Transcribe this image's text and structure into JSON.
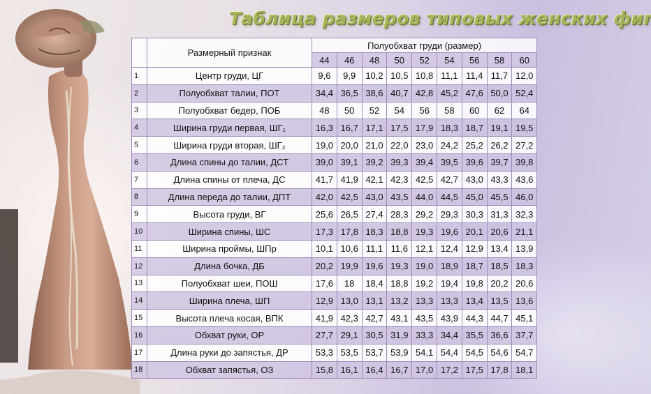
{
  "title": "Таблица размеров типовых женских фигур",
  "table": {
    "feature_header": "Размерный признак",
    "group_header": "Полуобхват груди (размер)",
    "sizes": [
      "44",
      "46",
      "48",
      "50",
      "52",
      "54",
      "56",
      "58",
      "60"
    ],
    "rows": [
      {
        "num": "1",
        "name": "Центр груди, ЦГ",
        "values": [
          "9,6",
          "9,9",
          "10,2",
          "10,5",
          "10,8",
          "11,1",
          "11,4",
          "11,7",
          "12,0"
        ]
      },
      {
        "num": "2",
        "name": "Полуобхват талии, ПОТ",
        "values": [
          "34,4",
          "36,5",
          "38,6",
          "40,7",
          "42,8",
          "45,2",
          "47,6",
          "50,0",
          "52,4"
        ]
      },
      {
        "num": "3",
        "name": "Полуобхват бедер, ПОБ",
        "values": [
          "48",
          "50",
          "52",
          "54",
          "56",
          "58",
          "60",
          "62",
          "64"
        ]
      },
      {
        "num": "4",
        "name": "Ширина груди первая, ШГ₁",
        "values": [
          "16,3",
          "16,7",
          "17,1",
          "17,5",
          "17,9",
          "18,3",
          "18,7",
          "19,1",
          "19,5"
        ]
      },
      {
        "num": "5",
        "name": "Ширина груди вторая, ШГ₂",
        "values": [
          "19,0",
          "20,0",
          "21,0",
          "22,0",
          "23,0",
          "24,2",
          "25,2",
          "26,2",
          "27,2"
        ]
      },
      {
        "num": "6",
        "name": "Длина спины до талии, ДСТ",
        "values": [
          "39,0",
          "39,1",
          "39,2",
          "39,3",
          "39,4",
          "39,5",
          "39,6",
          "39,7",
          "39,8"
        ]
      },
      {
        "num": "7",
        "name": "Длина спины от плеча, ДС",
        "values": [
          "41,7",
          "41,9",
          "42,1",
          "42,3",
          "42,5",
          "42,7",
          "43,0",
          "43,3",
          "43,6"
        ]
      },
      {
        "num": "8",
        "name": "Длина переда до талии, ДПТ",
        "values": [
          "42,0",
          "42,5",
          "43,0",
          "43,5",
          "44,0",
          "44,5",
          "45,0",
          "45,5",
          "46,0"
        ]
      },
      {
        "num": "9",
        "name": "Высота груди, ВГ",
        "values": [
          "25,6",
          "26,5",
          "27,4",
          "28,3",
          "29,2",
          "29,3",
          "30,3",
          "31,3",
          "32,3"
        ]
      },
      {
        "num": "10",
        "name": "Ширина спины, ШС",
        "values": [
          "17,3",
          "17,8",
          "18,3",
          "18,8",
          "19,3",
          "19,6",
          "20,1",
          "20,6",
          "21,1"
        ]
      },
      {
        "num": "11",
        "name": "Ширина проймы, ШПр",
        "values": [
          "10,1",
          "10,6",
          "11,1",
          "11,6",
          "12,1",
          "12,4",
          "12,9",
          "13,4",
          "13,9"
        ]
      },
      {
        "num": "12",
        "name": "Длина бочка, ДБ",
        "values": [
          "20,2",
          "19,9",
          "19,6",
          "19,3",
          "19,0",
          "18,9",
          "18,7",
          "18,5",
          "18,3"
        ]
      },
      {
        "num": "13",
        "name": "Полуобхват шеи, ПОШ",
        "values": [
          "17,6",
          "18",
          "18,4",
          "18,8",
          "19,2",
          "19,4",
          "19,8",
          "20,2",
          "20,6"
        ]
      },
      {
        "num": "14",
        "name": "Ширина плеча, ШП",
        "values": [
          "12,9",
          "13,0",
          "13,1",
          "13,2",
          "13,3",
          "13,3",
          "13,4",
          "13,5",
          "13,6"
        ]
      },
      {
        "num": "15",
        "name": "Высота плеча косая, ВПК",
        "values": [
          "41,9",
          "42,3",
          "42,7",
          "43,1",
          "43,5",
          "43,9",
          "44,3",
          "44,7",
          "45,1"
        ]
      },
      {
        "num": "16",
        "name": "Обхват руки, ОР",
        "values": [
          "27,7",
          "29,1",
          "30,5",
          "31,9",
          "33,3",
          "34,4",
          "35,5",
          "36,6",
          "37,7"
        ]
      },
      {
        "num": "17",
        "name": "Длина руки до запястья, ДР",
        "values": [
          "53,3",
          "53,5",
          "53,7",
          "53,9",
          "54,1",
          "54,4",
          "54,5",
          "54,6",
          "54,7"
        ]
      },
      {
        "num": "18",
        "name": "Обхват запястья, ОЗ",
        "values": [
          "15,8",
          "16,1",
          "16,4",
          "16,7",
          "17,0",
          "17,2",
          "17,5",
          "17,8",
          "18,1"
        ]
      }
    ]
  }
}
